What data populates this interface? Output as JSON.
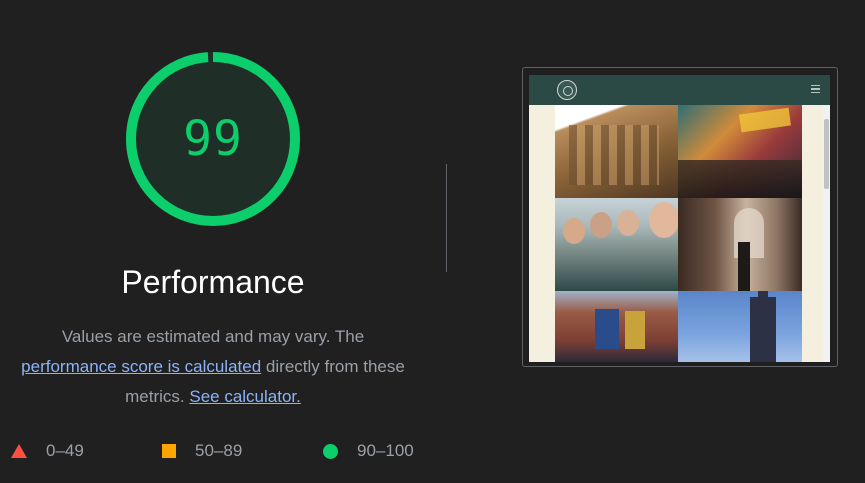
{
  "gauge": {
    "score": "99",
    "score_value": 99,
    "color": "#0cce6b"
  },
  "category": {
    "title": "Performance"
  },
  "description": {
    "text_before": "Values are estimated and may vary. The",
    "link_score": "performance score is calculated",
    "text_middle": "directly from these metrics.",
    "link_calculator": "See calculator."
  },
  "legend": {
    "items": [
      {
        "label": "0–49",
        "shape": "triangle-icon",
        "color": "#ff4e42"
      },
      {
        "label": "50–89",
        "shape": "square-icon",
        "color": "#ffa400"
      },
      {
        "label": "90–100",
        "shape": "circle-icon",
        "color": "#0cce6b"
      }
    ]
  },
  "screenshot": {
    "header_color": "#2c4a45",
    "logo": "site-logo-icon",
    "menu": "hamburger-menu-icon"
  }
}
